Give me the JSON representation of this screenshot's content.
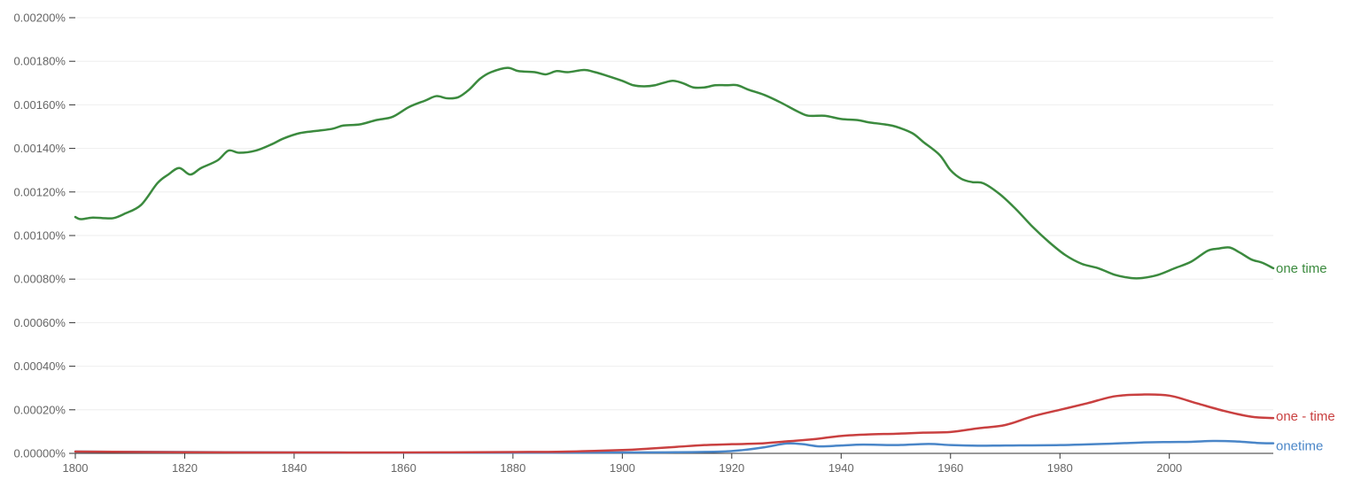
{
  "chart_data": {
    "type": "line",
    "title": "",
    "xlabel": "",
    "ylabel": "",
    "xlim": [
      1800,
      2019
    ],
    "ylim": [
      0,
      0.002
    ],
    "grid": true,
    "legend": "inline-right",
    "x_ticks": [
      1800,
      1820,
      1840,
      1860,
      1880,
      1900,
      1920,
      1940,
      1960,
      1980,
      2000
    ],
    "x_tick_labels": [
      "1800",
      "1820",
      "1840",
      "1860",
      "1880",
      "1900",
      "1920",
      "1940",
      "1960",
      "1980",
      "2000"
    ],
    "y_ticks": [
      0,
      0.0002,
      0.0004,
      0.0006,
      0.0008,
      0.001,
      0.0012,
      0.0014,
      0.0016,
      0.0018,
      0.002
    ],
    "y_tick_labels": [
      "0.00000%",
      "0.00020%",
      "0.00040%",
      "0.00060%",
      "0.00080%",
      "0.00100%",
      "0.00120%",
      "0.00140%",
      "0.00160%",
      "0.00180%",
      "0.00200%"
    ],
    "series": [
      {
        "name": "one time",
        "color": "#3b8a3e",
        "points": [
          [
            1800,
            0.001085
          ],
          [
            1801,
            0.001075
          ],
          [
            1803,
            0.001082
          ],
          [
            1805,
            0.00108
          ],
          [
            1807,
            0.00108
          ],
          [
            1809,
            0.0011
          ],
          [
            1812,
            0.00114
          ],
          [
            1815,
            0.00124
          ],
          [
            1817,
            0.00128
          ],
          [
            1819,
            0.00131
          ],
          [
            1821,
            0.00128
          ],
          [
            1823,
            0.00131
          ],
          [
            1826,
            0.001345
          ],
          [
            1828,
            0.00139
          ],
          [
            1830,
            0.00138
          ],
          [
            1833,
            0.00139
          ],
          [
            1836,
            0.00142
          ],
          [
            1838,
            0.001445
          ],
          [
            1841,
            0.00147
          ],
          [
            1844,
            0.00148
          ],
          [
            1847,
            0.00149
          ],
          [
            1849,
            0.001505
          ],
          [
            1852,
            0.00151
          ],
          [
            1855,
            0.00153
          ],
          [
            1858,
            0.001545
          ],
          [
            1861,
            0.00159
          ],
          [
            1864,
            0.00162
          ],
          [
            1866,
            0.00164
          ],
          [
            1868,
            0.00163
          ],
          [
            1870,
            0.001635
          ],
          [
            1872,
            0.00167
          ],
          [
            1874,
            0.00172
          ],
          [
            1876,
            0.00175
          ],
          [
            1879,
            0.00177
          ],
          [
            1881,
            0.001755
          ],
          [
            1884,
            0.00175
          ],
          [
            1886,
            0.00174
          ],
          [
            1888,
            0.001755
          ],
          [
            1890,
            0.00175
          ],
          [
            1893,
            0.00176
          ],
          [
            1895,
            0.00175
          ],
          [
            1897,
            0.001735
          ],
          [
            1900,
            0.00171
          ],
          [
            1902,
            0.00169
          ],
          [
            1904,
            0.001685
          ],
          [
            1906,
            0.00169
          ],
          [
            1909,
            0.00171
          ],
          [
            1911,
            0.0017
          ],
          [
            1913,
            0.00168
          ],
          [
            1915,
            0.00168
          ],
          [
            1917,
            0.00169
          ],
          [
            1919,
            0.00169
          ],
          [
            1921,
            0.00169
          ],
          [
            1923,
            0.00167
          ],
          [
            1926,
            0.001645
          ],
          [
            1929,
            0.00161
          ],
          [
            1932,
            0.00157
          ],
          [
            1934,
            0.00155
          ],
          [
            1937,
            0.00155
          ],
          [
            1940,
            0.001535
          ],
          [
            1943,
            0.00153
          ],
          [
            1945,
            0.00152
          ],
          [
            1948,
            0.00151
          ],
          [
            1950,
            0.0015
          ],
          [
            1953,
            0.00147
          ],
          [
            1955,
            0.00143
          ],
          [
            1958,
            0.00137
          ],
          [
            1960,
            0.0013
          ],
          [
            1962,
            0.00126
          ],
          [
            1964,
            0.001245
          ],
          [
            1966,
            0.00124
          ],
          [
            1969,
            0.00119
          ],
          [
            1972,
            0.00112
          ],
          [
            1975,
            0.00104
          ],
          [
            1978,
            0.00097
          ],
          [
            1981,
            0.00091
          ],
          [
            1984,
            0.00087
          ],
          [
            1987,
            0.00085
          ],
          [
            1990,
            0.00082
          ],
          [
            1993,
            0.000805
          ],
          [
            1995,
            0.000805
          ],
          [
            1998,
            0.00082
          ],
          [
            2001,
            0.00085
          ],
          [
            2004,
            0.00088
          ],
          [
            2007,
            0.00093
          ],
          [
            2009,
            0.00094
          ],
          [
            2011,
            0.000945
          ],
          [
            2013,
            0.00092
          ],
          [
            2015,
            0.00089
          ],
          [
            2017,
            0.000875
          ],
          [
            2019,
            0.00085
          ]
        ]
      },
      {
        "name": "one - time",
        "color": "#c94040",
        "points": [
          [
            1800,
            8e-06
          ],
          [
            1820,
            5e-06
          ],
          [
            1840,
            4e-06
          ],
          [
            1860,
            4e-06
          ],
          [
            1880,
            6e-06
          ],
          [
            1890,
            8e-06
          ],
          [
            1900,
            1.5e-05
          ],
          [
            1905,
            2.2e-05
          ],
          [
            1910,
            3e-05
          ],
          [
            1915,
            3.8e-05
          ],
          [
            1920,
            4.2e-05
          ],
          [
            1925,
            4.5e-05
          ],
          [
            1930,
            5.5e-05
          ],
          [
            1935,
            6.5e-05
          ],
          [
            1940,
            8e-05
          ],
          [
            1945,
            8.7e-05
          ],
          [
            1950,
            9e-05
          ],
          [
            1955,
            9.5e-05
          ],
          [
            1960,
            9.8e-05
          ],
          [
            1965,
            0.000115
          ],
          [
            1970,
            0.00013
          ],
          [
            1975,
            0.00017
          ],
          [
            1980,
            0.0002
          ],
          [
            1985,
            0.00023
          ],
          [
            1990,
            0.000262
          ],
          [
            1995,
            0.00027
          ],
          [
            2000,
            0.000265
          ],
          [
            2005,
            0.00023
          ],
          [
            2010,
            0.000195
          ],
          [
            2015,
            0.000168
          ],
          [
            2019,
            0.000162
          ]
        ]
      },
      {
        "name": "onetime",
        "color": "#4a86c8",
        "points": [
          [
            1800,
            8e-06
          ],
          [
            1820,
            6e-06
          ],
          [
            1840,
            4e-06
          ],
          [
            1860,
            3e-06
          ],
          [
            1880,
            3e-06
          ],
          [
            1900,
            4e-06
          ],
          [
            1910,
            5e-06
          ],
          [
            1918,
            8e-06
          ],
          [
            1922,
            1.5e-05
          ],
          [
            1926,
            2.8e-05
          ],
          [
            1930,
            4.5e-05
          ],
          [
            1933,
            4.2e-05
          ],
          [
            1936,
            3.2e-05
          ],
          [
            1940,
            3.6e-05
          ],
          [
            1944,
            4e-05
          ],
          [
            1950,
            3.8e-05
          ],
          [
            1956,
            4.3e-05
          ],
          [
            1960,
            3.8e-05
          ],
          [
            1965,
            3.5e-05
          ],
          [
            1970,
            3.6e-05
          ],
          [
            1980,
            3.8e-05
          ],
          [
            1990,
            4.5e-05
          ],
          [
            1995,
            5e-05
          ],
          [
            2000,
            5.2e-05
          ],
          [
            2004,
            5.3e-05
          ],
          [
            2008,
            5.7e-05
          ],
          [
            2012,
            5.5e-05
          ],
          [
            2016,
            4.8e-05
          ],
          [
            2019,
            4.6e-05
          ]
        ]
      }
    ]
  }
}
